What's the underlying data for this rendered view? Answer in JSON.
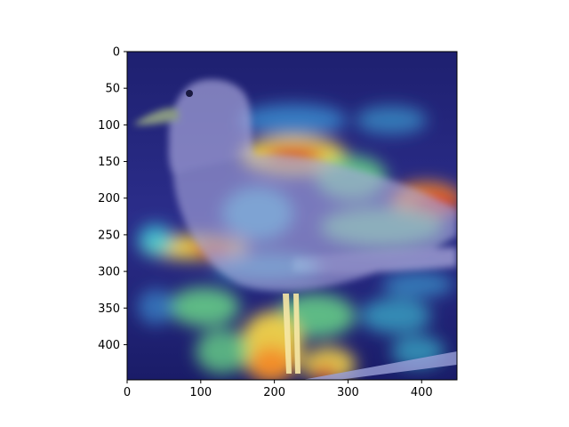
{
  "figure": {
    "background": "#ffffff",
    "axes_color": "#000000"
  },
  "image": {
    "subject": "seagull standing on a railing",
    "overlay": "jet colormap heatmap (blue to red) blended over the photo",
    "extent_x": [
      0,
      448
    ],
    "extent_y": [
      448,
      0
    ],
    "colors": {
      "base_blue": "#2b2d8a",
      "deep_blue": "#10145a",
      "bird_lavender": "#b7b5e6",
      "cyan": "#3fd0e0",
      "green": "#6de08a",
      "yellow": "#f2d34a",
      "orange": "#f28a2a",
      "red": "#d2232a"
    }
  },
  "axes": {
    "x_ticks": [
      {
        "value": 0,
        "label": "0"
      },
      {
        "value": 100,
        "label": "100"
      },
      {
        "value": 200,
        "label": "200"
      },
      {
        "value": 300,
        "label": "300"
      },
      {
        "value": 400,
        "label": "400"
      }
    ],
    "y_ticks": [
      {
        "value": 0,
        "label": "0"
      },
      {
        "value": 50,
        "label": "50"
      },
      {
        "value": 100,
        "label": "100"
      },
      {
        "value": 150,
        "label": "150"
      },
      {
        "value": 200,
        "label": "200"
      },
      {
        "value": 250,
        "label": "250"
      },
      {
        "value": 300,
        "label": "300"
      },
      {
        "value": 350,
        "label": "350"
      },
      {
        "value": 400,
        "label": "400"
      }
    ],
    "xlim": [
      0,
      448
    ],
    "ylim": [
      448,
      0
    ]
  }
}
